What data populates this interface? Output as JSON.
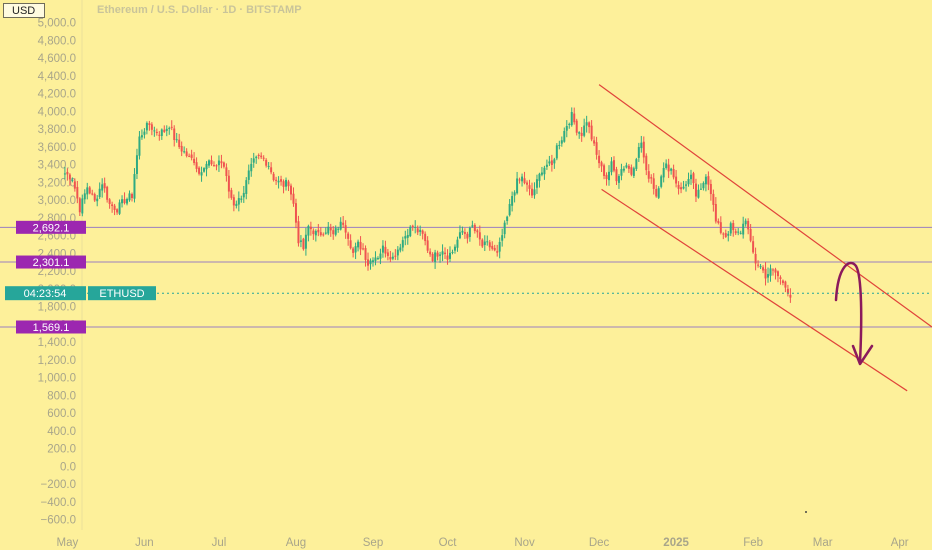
{
  "header": {
    "currency": "USD",
    "title": "Ethereum / U.S. Dollar · 1D · BITSTAMP"
  },
  "colors": {
    "background": "#fdf09a",
    "up": "#2eaa82",
    "down": "#ef5350",
    "level_line": "#9a7fc0",
    "level_tag": "#9c27b0",
    "price_tag": "#26a69a",
    "channel": "#e0443a",
    "annotation_arrow": "#8b1a5c",
    "axis_text": "#a8a58a"
  },
  "price_tag": {
    "time": "04:23:54",
    "symbol": "ETHUSD",
    "price": 1950
  },
  "chart_data": {
    "type": "candlestick",
    "title": "Ethereum / U.S. Dollar · 1D · BITSTAMP",
    "ylabel": "USD",
    "ylim": [
      -600,
      5000
    ],
    "y_ticks": [
      "5,000.0",
      "4,800.0",
      "4,600.0",
      "4,400.0",
      "4,200.0",
      "4,000.0",
      "3,800.0",
      "3,600.0",
      "3,400.0",
      "3,200.0",
      "3,000.0",
      "2,800.0",
      "2,600.0",
      "2,400.0",
      "2,200.0",
      "2,000.0",
      "1,800.0",
      "1,600.0",
      "1,400.0",
      "1,200.0",
      "1,000.0",
      "800.0",
      "600.0",
      "400.0",
      "200.0",
      "0.0",
      "−200.0",
      "−400.0",
      "−600.0"
    ],
    "y_tick_values": [
      5000,
      4800,
      4600,
      4400,
      4200,
      4000,
      3800,
      3600,
      3400,
      3200,
      3000,
      2800,
      2600,
      2400,
      2200,
      2000,
      1800,
      1600,
      1400,
      1200,
      1000,
      800,
      600,
      400,
      200,
      0,
      -200,
      -400,
      -600
    ],
    "x_ticks": [
      "May",
      "Jun",
      "Jul",
      "Aug",
      "Sep",
      "Oct",
      "Nov",
      "Dec",
      "2025",
      "Feb",
      "Mar",
      "Apr"
    ],
    "x_tick_days": [
      1,
      32,
      62,
      93,
      124,
      154,
      185,
      215,
      246,
      277,
      305,
      336
    ],
    "x_range_days": [
      -6,
      349
    ],
    "start_date": "2024-04-24",
    "end_date": "2025-03-10",
    "anchors": [
      [
        0,
        3300
      ],
      [
        3,
        3250
      ],
      [
        6,
        2900
      ],
      [
        9,
        3150
      ],
      [
        12,
        2980
      ],
      [
        15,
        3200
      ],
      [
        18,
        2950
      ],
      [
        21,
        2900
      ],
      [
        24,
        3000
      ],
      [
        27,
        3050
      ],
      [
        28,
        3300
      ],
      [
        30,
        3700
      ],
      [
        32,
        3800
      ],
      [
        34,
        3850
      ],
      [
        36,
        3780
      ],
      [
        38,
        3760
      ],
      [
        40,
        3780
      ],
      [
        42,
        3850
      ],
      [
        44,
        3700
      ],
      [
        46,
        3600
      ],
      [
        48,
        3540
      ],
      [
        50,
        3470
      ],
      [
        52,
        3450
      ],
      [
        54,
        3300
      ],
      [
        56,
        3400
      ],
      [
        58,
        3430
      ],
      [
        60,
        3350
      ],
      [
        62,
        3450
      ],
      [
        64,
        3380
      ],
      [
        66,
        3100
      ],
      [
        68,
        2960
      ],
      [
        70,
        3000
      ],
      [
        72,
        3100
      ],
      [
        74,
        3300
      ],
      [
        76,
        3430
      ],
      [
        78,
        3480
      ],
      [
        80,
        3460
      ],
      [
        82,
        3400
      ],
      [
        84,
        3250
      ],
      [
        86,
        3200
      ],
      [
        88,
        3170
      ],
      [
        90,
        3200
      ],
      [
        92,
        2950
      ],
      [
        94,
        2550
      ],
      [
        96,
        2450
      ],
      [
        98,
        2700
      ],
      [
        100,
        2650
      ],
      [
        102,
        2600
      ],
      [
        104,
        2650
      ],
      [
        106,
        2680
      ],
      [
        108,
        2600
      ],
      [
        110,
        2700
      ],
      [
        112,
        2750
      ],
      [
        114,
        2600
      ],
      [
        116,
        2400
      ],
      [
        118,
        2500
      ],
      [
        120,
        2450
      ],
      [
        122,
        2280
      ],
      [
        124,
        2360
      ],
      [
        126,
        2370
      ],
      [
        128,
        2460
      ],
      [
        130,
        2400
      ],
      [
        132,
        2350
      ],
      [
        134,
        2450
      ],
      [
        136,
        2550
      ],
      [
        138,
        2650
      ],
      [
        140,
        2700
      ],
      [
        142,
        2650
      ],
      [
        144,
        2600
      ],
      [
        146,
        2450
      ],
      [
        148,
        2350
      ],
      [
        150,
        2400
      ],
      [
        152,
        2450
      ],
      [
        154,
        2370
      ],
      [
        156,
        2420
      ],
      [
        158,
        2550
      ],
      [
        160,
        2650
      ],
      [
        162,
        2600
      ],
      [
        164,
        2700
      ],
      [
        166,
        2600
      ],
      [
        168,
        2480
      ],
      [
        170,
        2500
      ],
      [
        172,
        2450
      ],
      [
        174,
        2380
      ],
      [
        176,
        2600
      ],
      [
        178,
        2800
      ],
      [
        180,
        3050
      ],
      [
        182,
        3200
      ],
      [
        184,
        3250
      ],
      [
        186,
        3150
      ],
      [
        188,
        3050
      ],
      [
        190,
        3200
      ],
      [
        192,
        3350
      ],
      [
        194,
        3400
      ],
      [
        196,
        3380
      ],
      [
        198,
        3600
      ],
      [
        200,
        3700
      ],
      [
        202,
        3850
      ],
      [
        204,
        3950
      ],
      [
        206,
        3800
      ],
      [
        208,
        3750
      ],
      [
        210,
        3900
      ],
      [
        212,
        3700
      ],
      [
        214,
        3500
      ],
      [
        216,
        3350
      ],
      [
        218,
        3250
      ],
      [
        220,
        3400
      ],
      [
        222,
        3250
      ],
      [
        224,
        3350
      ],
      [
        226,
        3400
      ],
      [
        228,
        3300
      ],
      [
        230,
        3500
      ],
      [
        232,
        3650
      ],
      [
        234,
        3300
      ],
      [
        236,
        3250
      ],
      [
        238,
        3050
      ],
      [
        240,
        3300
      ],
      [
        242,
        3380
      ],
      [
        244,
        3350
      ],
      [
        246,
        3200
      ],
      [
        248,
        3100
      ],
      [
        250,
        3200
      ],
      [
        252,
        3250
      ],
      [
        254,
        3050
      ],
      [
        256,
        3100
      ],
      [
        258,
        3300
      ],
      [
        260,
        3100
      ],
      [
        262,
        2750
      ],
      [
        264,
        2650
      ],
      [
        266,
        2600
      ],
      [
        268,
        2700
      ],
      [
        270,
        2600
      ],
      [
        272,
        2650
      ],
      [
        274,
        2800
      ],
      [
        276,
        2500
      ],
      [
        278,
        2300
      ],
      [
        280,
        2250
      ],
      [
        282,
        2150
      ],
      [
        284,
        2200
      ],
      [
        286,
        2180
      ],
      [
        288,
        2100
      ],
      [
        290,
        2050
      ],
      [
        292,
        1900
      ]
    ],
    "levels": [
      {
        "label": "2,692.1",
        "value": 2692.1
      },
      {
        "label": "2,301.1",
        "value": 2301.1
      },
      {
        "label": "1,569.1",
        "value": 1569.1
      }
    ],
    "channel": {
      "upper": {
        "from": {
          "day": 215,
          "price": 4300
        },
        "to": {
          "day": 349,
          "price": 1569
        }
      },
      "lower": {
        "from": {
          "day": 216,
          "price": 3120
        },
        "to": {
          "day": 339,
          "price": 850
        }
      }
    },
    "grid": false,
    "legend": "none"
  }
}
